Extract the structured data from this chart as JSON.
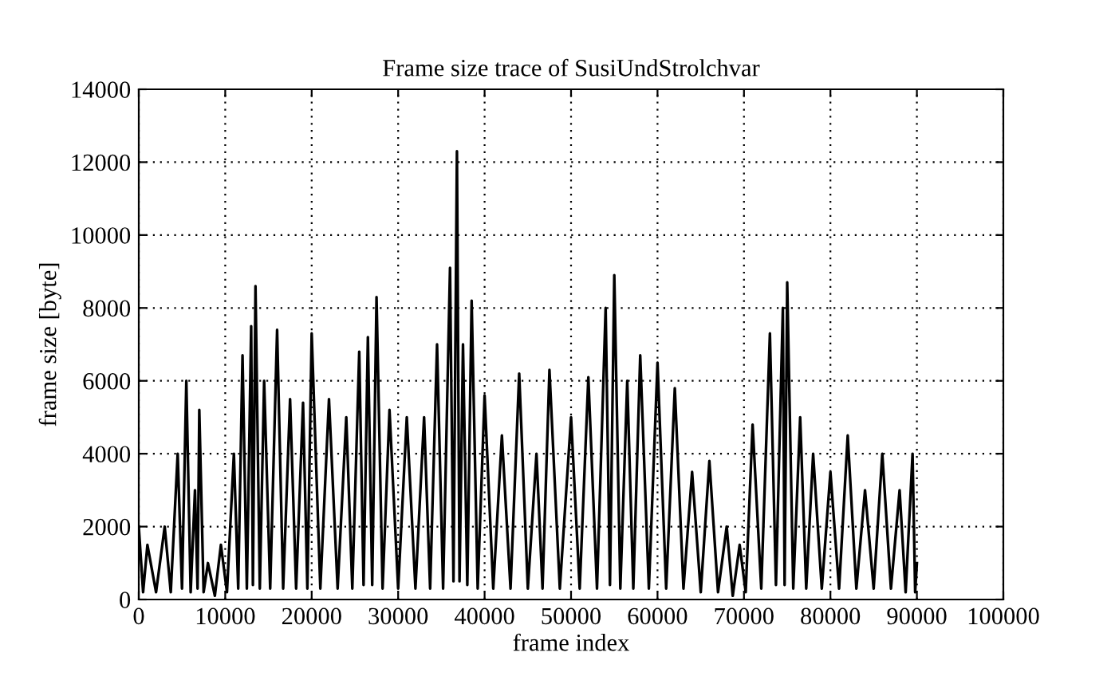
{
  "chart_data": {
    "type": "line",
    "title": "Frame size trace of SusiUndStrolchvar",
    "xlabel": "frame index",
    "ylabel": "frame size [byte]",
    "series": [
      {
        "color": "#000000",
        "x": [
          0,
          500,
          1000,
          2000,
          3000,
          3700,
          4500,
          5000,
          5500,
          6000,
          6500,
          6800,
          7000,
          7500,
          8000,
          8800,
          9500,
          10200,
          11000,
          11500,
          12000,
          12500,
          13000,
          13200,
          13500,
          14000,
          14500,
          15200,
          16000,
          16700,
          17500,
          18200,
          19000,
          19500,
          20000,
          21000,
          22000,
          23000,
          24000,
          24700,
          25500,
          26000,
          26500,
          27000,
          27500,
          28200,
          29000,
          30000,
          31000,
          32000,
          33000,
          33700,
          34500,
          35200,
          36000,
          36400,
          36800,
          37100,
          37500,
          38000,
          38500,
          39200,
          40000,
          41000,
          42000,
          43000,
          44000,
          45000,
          46000,
          46700,
          47500,
          48700,
          50000,
          51000,
          52000,
          53000,
          54000,
          54500,
          55000,
          55700,
          56500,
          57200,
          58000,
          59000,
          60000,
          61000,
          62000,
          63000,
          64000,
          65000,
          66000,
          67000,
          68000,
          68700,
          69500,
          70200,
          71000,
          72000,
          73000,
          73700,
          74500,
          74700,
          75000,
          75700,
          76500,
          77200,
          78000,
          79000,
          80000,
          81000,
          82000,
          83000,
          84000,
          85000,
          86000,
          87000,
          88000,
          88700,
          89500,
          89800,
          90000
        ],
        "values": [
          2000,
          200,
          1500,
          200,
          2000,
          200,
          4000,
          300,
          6000,
          200,
          3000,
          300,
          5200,
          200,
          1000,
          100,
          1500,
          200,
          4000,
          300,
          6700,
          300,
          7500,
          400,
          8600,
          300,
          6000,
          300,
          7400,
          300,
          5500,
          300,
          5400,
          300,
          7300,
          300,
          5500,
          300,
          5000,
          300,
          6800,
          400,
          7200,
          400,
          8300,
          300,
          5200,
          300,
          5000,
          300,
          5000,
          300,
          7000,
          300,
          9100,
          500,
          12300,
          500,
          7000,
          400,
          8200,
          300,
          5600,
          300,
          4500,
          300,
          6200,
          300,
          4000,
          300,
          6300,
          300,
          5000,
          300,
          6100,
          300,
          8000,
          400,
          8900,
          300,
          6000,
          300,
          6700,
          300,
          6500,
          300,
          5800,
          300,
          3500,
          200,
          3800,
          200,
          2000,
          100,
          1500,
          200,
          4800,
          300,
          7300,
          400,
          8000,
          400,
          8700,
          300,
          5000,
          300,
          4000,
          300,
          3500,
          300,
          4500,
          300,
          3000,
          300,
          4000,
          300,
          3000,
          200,
          4000,
          200,
          1000
        ]
      }
    ],
    "xlim": [
      0,
      100000
    ],
    "xticks": [
      0,
      10000,
      20000,
      30000,
      40000,
      50000,
      60000,
      70000,
      80000,
      90000,
      100000
    ],
    "ylim": [
      0,
      14000
    ],
    "yticks": [
      0,
      2000,
      4000,
      6000,
      8000,
      10000,
      12000,
      14000
    ],
    "grid": true,
    "legend": false,
    "marker": "none",
    "line_style": "solid"
  }
}
